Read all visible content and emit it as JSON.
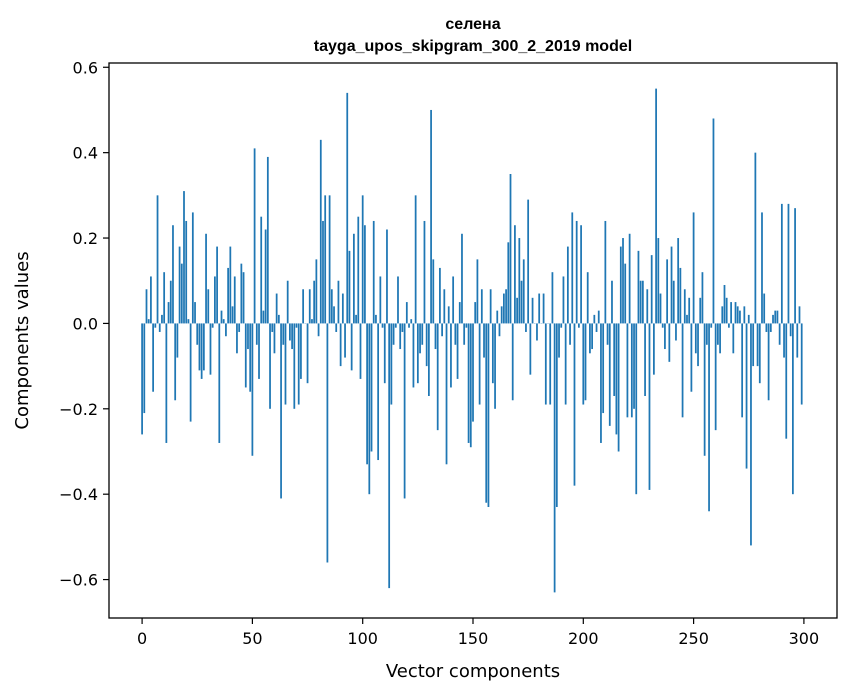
{
  "chart_data": {
    "type": "bar",
    "title_line1": "селена",
    "title_line2": "tayga_upos_skipgram_300_2_2019 model",
    "xlabel": "Vector components",
    "ylabel": "Components values",
    "xlim": [
      -15,
      315
    ],
    "ylim": [
      -0.69,
      0.61
    ],
    "xticks": [
      0,
      50,
      100,
      150,
      200,
      250,
      300
    ],
    "xtick_labels": [
      "0",
      "50",
      "100",
      "150",
      "200",
      "250",
      "300"
    ],
    "yticks": [
      -0.6,
      -0.4,
      -0.2,
      0.0,
      0.2,
      0.4,
      0.6
    ],
    "ytick_labels": [
      "−0.6",
      "−0.4",
      "−0.2",
      "0.0",
      "0.2",
      "0.4",
      "0.6"
    ],
    "bar_color": "#1f77b4",
    "values": [
      -0.26,
      -0.21,
      0.08,
      0.01,
      0.11,
      -0.16,
      -0.01,
      0.3,
      -0.02,
      0.02,
      0.12,
      -0.28,
      0.05,
      0.1,
      0.23,
      -0.18,
      -0.08,
      0.18,
      0.14,
      0.31,
      0.24,
      0.01,
      -0.23,
      0.26,
      0.05,
      -0.05,
      -0.11,
      -0.13,
      -0.11,
      0.21,
      0.08,
      -0.12,
      -0.01,
      0.11,
      0.18,
      -0.28,
      0.03,
      0.01,
      -0.03,
      0.13,
      0.18,
      0.04,
      0.11,
      -0.07,
      -0.02,
      0.14,
      0.12,
      -0.15,
      -0.06,
      -0.16,
      -0.31,
      0.41,
      -0.05,
      -0.13,
      0.25,
      0.03,
      0.22,
      0.39,
      -0.2,
      -0.02,
      -0.07,
      0.07,
      0.02,
      -0.41,
      -0.05,
      -0.19,
      0.1,
      -0.04,
      -0.06,
      -0.2,
      -0.01,
      -0.19,
      -0.13,
      0.08,
      0.0,
      -0.14,
      0.08,
      0.01,
      0.1,
      0.15,
      -0.03,
      0.43,
      0.24,
      0.3,
      -0.56,
      0.3,
      0.08,
      0.04,
      -0.02,
      0.1,
      -0.1,
      0.07,
      -0.08,
      0.54,
      0.17,
      -0.11,
      0.21,
      0.02,
      0.25,
      -0.13,
      0.3,
      0.23,
      -0.33,
      -0.4,
      -0.3,
      0.24,
      0.02,
      -0.32,
      0.11,
      -0.01,
      -0.14,
      0.22,
      -0.62,
      -0.19,
      -0.05,
      -0.01,
      0.11,
      -0.06,
      -0.02,
      -0.41,
      0.05,
      -0.01,
      0.01,
      -0.15,
      0.3,
      -0.14,
      -0.07,
      -0.05,
      0.24,
      -0.1,
      -0.17,
      0.5,
      0.15,
      -0.06,
      -0.25,
      0.13,
      -0.03,
      0.08,
      -0.33,
      0.04,
      -0.15,
      0.11,
      -0.05,
      -0.13,
      0.05,
      0.21,
      -0.05,
      -0.01,
      -0.28,
      -0.29,
      -0.23,
      0.05,
      0.15,
      -0.19,
      0.08,
      -0.08,
      -0.42,
      -0.43,
      0.08,
      -0.14,
      -0.2,
      0.03,
      -0.03,
      0.04,
      0.07,
      0.08,
      0.19,
      0.35,
      -0.18,
      0.23,
      0.06,
      0.2,
      0.1,
      0.15,
      -0.02,
      0.29,
      -0.12,
      0.06,
      0.0,
      -0.04,
      0.07,
      0.0,
      0.07,
      -0.19,
      0.0,
      -0.19,
      0.12,
      -0.63,
      -0.43,
      -0.08,
      -0.01,
      0.11,
      -0.19,
      0.18,
      -0.05,
      0.26,
      -0.38,
      0.24,
      -0.01,
      0.23,
      -0.19,
      -0.18,
      0.12,
      -0.07,
      -0.06,
      0.02,
      -0.02,
      0.03,
      -0.28,
      -0.21,
      0.24,
      -0.05,
      -0.24,
      0.1,
      -0.17,
      -0.26,
      -0.3,
      0.18,
      0.2,
      0.14,
      -0.22,
      0.21,
      -0.22,
      -0.2,
      -0.4,
      0.17,
      0.1,
      0.1,
      -0.17,
      0.08,
      -0.39,
      0.16,
      -0.12,
      0.55,
      0.2,
      0.07,
      -0.01,
      -0.06,
      0.15,
      -0.09,
      0.18,
      0.1,
      -0.04,
      0.2,
      0.13,
      -0.22,
      0.08,
      0.02,
      0.06,
      -0.16,
      0.26,
      -0.07,
      -0.1,
      0.06,
      0.12,
      -0.31,
      -0.05,
      -0.44,
      -0.01,
      0.48,
      -0.25,
      -0.05,
      -0.07,
      0.04,
      0.09,
      0.06,
      -0.01,
      0.05,
      -0.07,
      0.05,
      0.04,
      0.03,
      -0.22,
      0.04,
      -0.34,
      0.02,
      -0.52,
      -0.1,
      0.4,
      -0.1,
      -0.14,
      0.26,
      0.07,
      -0.02,
      -0.18,
      -0.02,
      0.02,
      0.03,
      0.03,
      -0.05,
      0.28,
      -0.08,
      -0.27,
      0.28,
      -0.03,
      -0.4,
      0.27,
      -0.08,
      0.04,
      -0.19
    ]
  }
}
